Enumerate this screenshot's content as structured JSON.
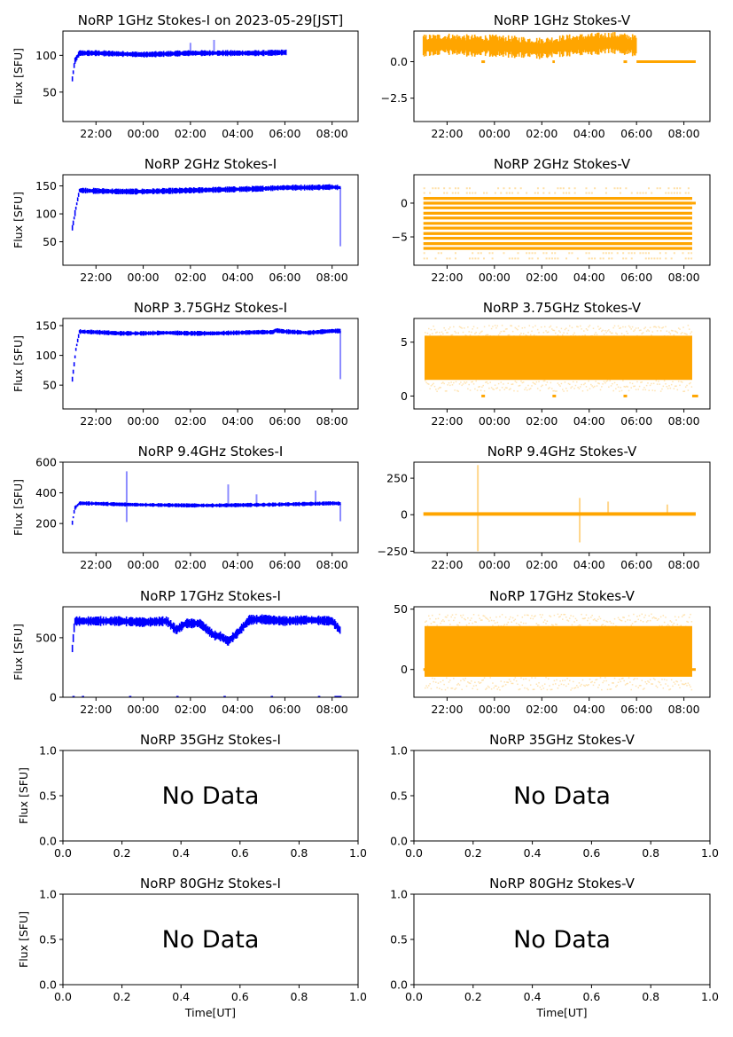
{
  "figure": {
    "title_prefix_note": "",
    "ylabel": "Flux [SFU]",
    "xlabel": "Time[UT]"
  },
  "chart_data": [
    {
      "id": "1ghz-i",
      "type": "scatter",
      "title": "NoRP 1GHz Stokes-I on 2023-05-29[JST]",
      "color": "#0000ff",
      "ylabel": "Flux [SFU]",
      "xlabel": "",
      "xlim_hours": [
        20.6,
        33.1
      ],
      "ylim": [
        10,
        133
      ],
      "yticks": [
        50,
        100
      ],
      "ytick_labels": [
        "50",
        "100"
      ],
      "xticks_hours": [
        22,
        24,
        26,
        28,
        30,
        32
      ],
      "xtick_labels": [
        "22:00",
        "00:00",
        "02:00",
        "04:00",
        "06:00",
        "08:00"
      ],
      "series": [
        {
          "name": "Stokes-I",
          "x_hours": [
            21.0,
            21.1,
            21.3,
            22,
            23,
            24,
            25,
            26,
            27,
            28,
            29,
            30.05
          ],
          "values": [
            68,
            92,
            103,
            103,
            102,
            101,
            102,
            103,
            103,
            103,
            103,
            104
          ],
          "spread": 3
        }
      ],
      "spikes": [
        {
          "x_hours": 26.0,
          "value": 117
        },
        {
          "x_hours": 27.0,
          "value": 121
        }
      ]
    },
    {
      "id": "1ghz-v",
      "type": "scatter",
      "title": "NoRP 1GHz Stokes-V",
      "color": "#ffa500",
      "ylabel": "",
      "xlabel": "",
      "xlim_hours": [
        20.6,
        33.1
      ],
      "ylim": [
        -4.1,
        2.1
      ],
      "yticks": [
        -2.5,
        0.0
      ],
      "ytick_labels": [
        "−2.5",
        "0.0"
      ],
      "xticks_hours": [
        22,
        24,
        26,
        28,
        30,
        32
      ],
      "xtick_labels": [
        "22:00",
        "00:00",
        "02:00",
        "04:00",
        "06:00",
        "08:00"
      ],
      "series": [
        {
          "name": "Stokes-V",
          "x_hours": [
            21.0,
            22,
            23,
            24,
            25,
            26,
            27,
            28,
            29,
            30.0
          ],
          "values": [
            1.1,
            1.2,
            1.1,
            1.1,
            1.0,
            0.9,
            1.1,
            1.2,
            1.3,
            1.1
          ],
          "spread": 0.55
        }
      ],
      "zero_segments": [
        [
          23.45,
          23.6
        ],
        [
          26.45,
          26.55
        ],
        [
          29.45,
          29.6
        ],
        [
          30.0,
          32.5
        ]
      ]
    },
    {
      "id": "2ghz-i",
      "type": "scatter",
      "title": "NoRP 2GHz Stokes-I",
      "color": "#0000ff",
      "ylabel": "Flux [SFU]",
      "xlabel": "",
      "xlim_hours": [
        20.6,
        33.1
      ],
      "ylim": [
        8,
        170
      ],
      "yticks": [
        50,
        100,
        150
      ],
      "ytick_labels": [
        "50",
        "100",
        "150"
      ],
      "xticks_hours": [
        22,
        24,
        26,
        28,
        30,
        32
      ],
      "xtick_labels": [
        "22:00",
        "00:00",
        "02:00",
        "04:00",
        "06:00",
        "08:00"
      ],
      "series": [
        {
          "name": "Stokes-I",
          "x_hours": [
            21.0,
            21.15,
            21.3,
            22,
            23,
            24,
            25,
            26,
            27,
            28,
            29,
            30,
            31,
            32,
            32.35
          ],
          "values": [
            75,
            110,
            142,
            141,
            140,
            140,
            141,
            142,
            143,
            144,
            145,
            147,
            147,
            148,
            147
          ],
          "spread": 4
        }
      ],
      "spikes": [
        {
          "x_hours": 32.35,
          "value": 42
        }
      ]
    },
    {
      "id": "2ghz-v",
      "type": "scatter",
      "title": "NoRP 2GHz Stokes-V",
      "color": "#ffa500",
      "ylabel": "",
      "xlabel": "",
      "xlim_hours": [
        20.6,
        33.1
      ],
      "ylim": [
        -9.2,
        4.2
      ],
      "yticks": [
        -5,
        0
      ],
      "ytick_labels": [
        "−5",
        "0"
      ],
      "xticks_hours": [
        22,
        24,
        26,
        28,
        30,
        32
      ],
      "xtick_labels": [
        "22:00",
        "00:00",
        "02:00",
        "04:00",
        "06:00",
        "08:00"
      ],
      "series": [
        {
          "name": "Stokes-V",
          "x_range_hours": [
            21.0,
            32.35
          ],
          "levels": [
            0.7,
            0.0,
            -0.7,
            -1.5,
            -2.2,
            -3.0,
            -3.7,
            -4.5,
            -5.2,
            -6.0,
            -6.7
          ],
          "sparse_levels": [
            1.5,
            2.2,
            -7.4,
            -8.2
          ]
        }
      ],
      "zero_segments": [
        [
          32.35,
          32.5
        ]
      ]
    },
    {
      "id": "3.75ghz-i",
      "type": "scatter",
      "title": "NoRP 3.75GHz Stokes-I",
      "color": "#0000ff",
      "ylabel": "Flux [SFU]",
      "xlabel": "",
      "xlim_hours": [
        20.6,
        33.1
      ],
      "ylim": [
        10,
        162
      ],
      "yticks": [
        50,
        100,
        150
      ],
      "ytick_labels": [
        "50",
        "100",
        "150"
      ],
      "xticks_hours": [
        22,
        24,
        26,
        28,
        30,
        32
      ],
      "xtick_labels": [
        "22:00",
        "00:00",
        "02:00",
        "04:00",
        "06:00",
        "08:00"
      ],
      "series": [
        {
          "name": "Stokes-I",
          "x_hours": [
            21.0,
            21.15,
            21.3,
            22,
            23,
            24,
            25,
            26,
            27,
            28,
            29,
            29.5,
            29.6,
            30,
            31,
            32,
            32.35
          ],
          "values": [
            60,
            110,
            140,
            139,
            137,
            137,
            138,
            137,
            137,
            138,
            139,
            139,
            142,
            140,
            138,
            141,
            141
          ],
          "spread": 3
        }
      ],
      "spikes": [
        {
          "x_hours": 32.35,
          "value": 60
        }
      ]
    },
    {
      "id": "3.75ghz-v",
      "type": "scatter",
      "title": "NoRP 3.75GHz Stokes-V",
      "color": "#ffa500",
      "ylabel": "",
      "xlabel": "",
      "xlim_hours": [
        20.6,
        33.1
      ],
      "ylim": [
        -1.2,
        7.2
      ],
      "yticks": [
        0,
        5
      ],
      "ytick_labels": [
        "0",
        "5"
      ],
      "xticks_hours": [
        22,
        24,
        26,
        28,
        30,
        32
      ],
      "xtick_labels": [
        "22:00",
        "00:00",
        "02:00",
        "04:00",
        "06:00",
        "08:00"
      ],
      "series": [
        {
          "name": "Stokes-V",
          "x_range_hours": [
            21.05,
            32.35
          ],
          "band": [
            1.5,
            5.6
          ]
        }
      ],
      "zero_segments": [
        [
          23.45,
          23.6
        ],
        [
          26.45,
          26.6
        ],
        [
          29.45,
          29.6
        ],
        [
          32.35,
          32.6
        ]
      ]
    },
    {
      "id": "9.4ghz-i",
      "type": "scatter",
      "title": "NoRP 9.4GHz Stokes-I",
      "color": "#0000ff",
      "ylabel": "Flux [SFU]",
      "xlabel": "",
      "xlim_hours": [
        20.6,
        33.1
      ],
      "ylim": [
        10,
        600
      ],
      "yticks": [
        200,
        400,
        600
      ],
      "ytick_labels": [
        "200",
        "400",
        "600"
      ],
      "xticks_hours": [
        22,
        24,
        26,
        28,
        30,
        32
      ],
      "xtick_labels": [
        "22:00",
        "00:00",
        "02:00",
        "04:00",
        "06:00",
        "08:00"
      ],
      "series": [
        {
          "name": "Stokes-I",
          "x_hours": [
            21.0,
            21.1,
            21.3,
            22,
            23,
            24,
            25,
            26,
            27,
            28,
            29,
            30,
            31,
            32,
            32.35
          ],
          "values": [
            205,
            300,
            332,
            330,
            325,
            322,
            320,
            318,
            318,
            320,
            322,
            325,
            328,
            332,
            330
          ],
          "spread": 10
        }
      ],
      "spikes": [
        {
          "x_hours": 23.3,
          "value": 540
        },
        {
          "x_hours": 23.3,
          "value": 210
        },
        {
          "x_hours": 27.6,
          "value": 455
        },
        {
          "x_hours": 28.8,
          "value": 390
        },
        {
          "x_hours": 31.3,
          "value": 415
        },
        {
          "x_hours": 32.35,
          "value": 215
        }
      ]
    },
    {
      "id": "9.4ghz-v",
      "type": "scatter",
      "title": "NoRP 9.4GHz Stokes-V",
      "color": "#ffa500",
      "ylabel": "",
      "xlabel": "",
      "xlim_hours": [
        20.6,
        33.1
      ],
      "ylim": [
        -260,
        360
      ],
      "yticks": [
        -250,
        0,
        250
      ],
      "ytick_labels": [
        "−250",
        "0",
        "250"
      ],
      "xticks_hours": [
        22,
        24,
        26,
        28,
        30,
        32
      ],
      "xtick_labels": [
        "22:00",
        "00:00",
        "02:00",
        "04:00",
        "06:00",
        "08:00"
      ],
      "series": [
        {
          "name": "Stokes-V",
          "x_range_hours": [
            21.0,
            32.5
          ],
          "values_baseline": 5,
          "spread": 12
        }
      ],
      "spikes": [
        {
          "x_hours": 23.3,
          "value": 340
        },
        {
          "x_hours": 23.3,
          "value": -250
        },
        {
          "x_hours": 27.6,
          "value": 115
        },
        {
          "x_hours": 27.6,
          "value": -190
        },
        {
          "x_hours": 28.8,
          "value": 90
        },
        {
          "x_hours": 31.3,
          "value": 70
        }
      ]
    },
    {
      "id": "17ghz-i",
      "type": "scatter",
      "title": "NoRP 17GHz Stokes-I",
      "color": "#0000ff",
      "ylabel": "Flux [SFU]",
      "xlabel": "",
      "xlim_hours": [
        20.6,
        33.1
      ],
      "ylim": [
        0,
        760
      ],
      "yticks": [
        0,
        500
      ],
      "ytick_labels": [
        "0",
        "500"
      ],
      "xticks_hours": [
        22,
        24,
        26,
        28,
        30,
        32
      ],
      "xtick_labels": [
        "22:00",
        "00:00",
        "02:00",
        "04:00",
        "06:00",
        "08:00"
      ],
      "series": [
        {
          "name": "Stokes-I",
          "x_hours": [
            21.0,
            21.1,
            22,
            23,
            24,
            25,
            25.4,
            25.8,
            26.4,
            27.0,
            27.3,
            27.6,
            28.0,
            28.5,
            29.0,
            30,
            31,
            32,
            32.35
          ],
          "values": [
            410,
            640,
            640,
            640,
            630,
            640,
            565,
            620,
            620,
            520,
            510,
            470,
            540,
            650,
            655,
            640,
            650,
            640,
            560
          ],
          "spread": 30
        }
      ],
      "zero_segments": [
        [
          21.0,
          21.1
        ],
        [
          21.4,
          21.5
        ],
        [
          23.4,
          23.5
        ],
        [
          25.4,
          25.5
        ],
        [
          27.4,
          27.5
        ],
        [
          29.4,
          29.5
        ],
        [
          31.4,
          31.5
        ],
        [
          32.1,
          32.4
        ]
      ]
    },
    {
      "id": "17ghz-v",
      "type": "scatter",
      "title": "NoRP 17GHz Stokes-V",
      "color": "#ffa500",
      "ylabel": "",
      "xlabel": "",
      "xlim_hours": [
        20.6,
        33.1
      ],
      "ylim": [
        -23,
        52
      ],
      "yticks": [
        0,
        50
      ],
      "ytick_labels": [
        "0",
        "50"
      ],
      "xticks_hours": [
        22,
        24,
        26,
        28,
        30,
        32
      ],
      "xtick_labels": [
        "22:00",
        "00:00",
        "02:00",
        "04:00",
        "06:00",
        "08:00"
      ],
      "series": [
        {
          "name": "Stokes-V",
          "x_range_hours": [
            21.05,
            32.35
          ],
          "band": [
            -6,
            36
          ]
        }
      ],
      "zero_segments": [
        [
          21.0,
          21.05
        ],
        [
          32.35,
          32.5
        ]
      ]
    },
    {
      "id": "35ghz-i",
      "type": "empty",
      "title": "NoRP 35GHz Stokes-I",
      "message": "No Data",
      "ylabel": "Flux [SFU]",
      "xlabel": "",
      "xlim": [
        0,
        1
      ],
      "ylim": [
        0,
        1
      ],
      "yticks": [
        0,
        0.5,
        1
      ],
      "ytick_labels": [
        "0.0",
        "0.5",
        "1.0"
      ],
      "xticks": [
        0,
        0.2,
        0.4,
        0.6,
        0.8,
        1
      ],
      "xtick_labels": [
        "0.0",
        "0.2",
        "0.4",
        "0.6",
        "0.8",
        "1.0"
      ]
    },
    {
      "id": "35ghz-v",
      "type": "empty",
      "title": "NoRP 35GHz Stokes-V",
      "message": "No Data",
      "ylabel": "",
      "xlabel": "",
      "xlim": [
        0,
        1
      ],
      "ylim": [
        0,
        1
      ],
      "yticks": [
        0,
        0.5,
        1
      ],
      "ytick_labels": [
        "0.0",
        "0.5",
        "1.0"
      ],
      "xticks": [
        0,
        0.2,
        0.4,
        0.6,
        0.8,
        1
      ],
      "xtick_labels": [
        "0.0",
        "0.2",
        "0.4",
        "0.6",
        "0.8",
        "1.0"
      ]
    },
    {
      "id": "80ghz-i",
      "type": "empty",
      "title": "NoRP 80GHz Stokes-I",
      "message": "No Data",
      "ylabel": "Flux [SFU]",
      "xlabel": "Time[UT]",
      "xlim": [
        0,
        1
      ],
      "ylim": [
        0,
        1
      ],
      "yticks": [
        0,
        0.5,
        1
      ],
      "ytick_labels": [
        "0.0",
        "0.5",
        "1.0"
      ],
      "xticks": [
        0,
        0.2,
        0.4,
        0.6,
        0.8,
        1
      ],
      "xtick_labels": [
        "0.0",
        "0.2",
        "0.4",
        "0.6",
        "0.8",
        "1.0"
      ]
    },
    {
      "id": "80ghz-v",
      "type": "empty",
      "title": "NoRP 80GHz Stokes-V",
      "message": "No Data",
      "ylabel": "",
      "xlabel": "Time[UT]",
      "xlim": [
        0,
        1
      ],
      "ylim": [
        0,
        1
      ],
      "yticks": [
        0,
        0.5,
        1
      ],
      "ytick_labels": [
        "0.0",
        "0.5",
        "1.0"
      ],
      "xticks": [
        0,
        0.2,
        0.4,
        0.6,
        0.8,
        1
      ],
      "xtick_labels": [
        "0.0",
        "0.2",
        "0.4",
        "0.6",
        "0.8",
        "1.0"
      ]
    }
  ]
}
